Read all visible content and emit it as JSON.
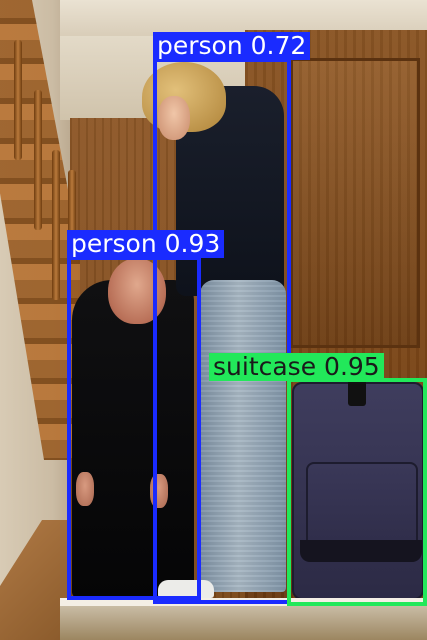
{
  "detections": [
    {
      "class_name": "person",
      "score": "0.72",
      "color": "#1a2bff",
      "text_color": "#ffffff"
    },
    {
      "class_name": "person",
      "score": "0.93",
      "color": "#1a2bff",
      "text_color": "#ffffff"
    },
    {
      "class_name": "suitcase",
      "score": "0.95",
      "color": "#22e85a",
      "text_color": "#1a1a1a"
    }
  ]
}
